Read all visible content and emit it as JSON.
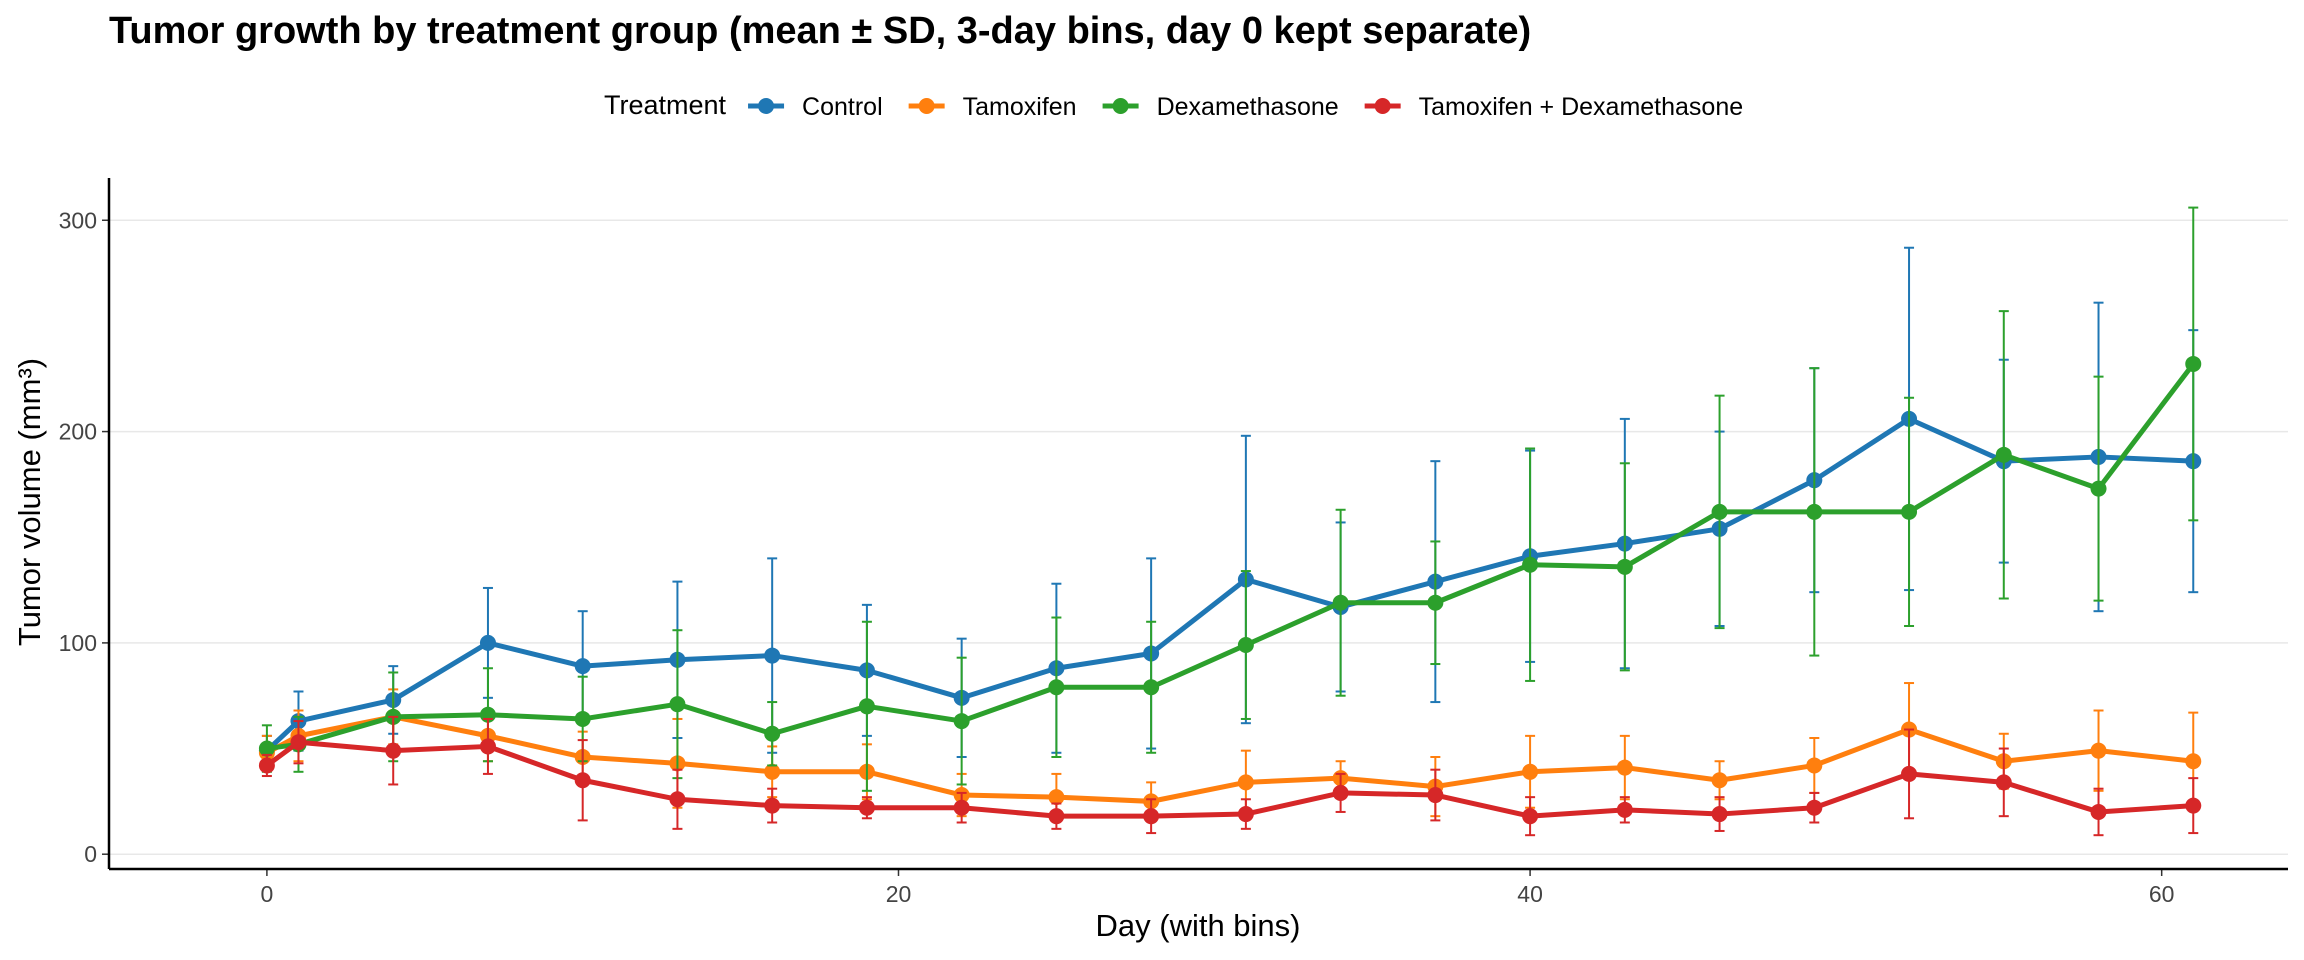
{
  "chart_data": {
    "type": "line",
    "title": "Tumor growth by treatment group (mean ± SD, 3-day bins, day 0 kept separate)",
    "xlabel": "Day (with bins)",
    "ylabel": "Tumor volume (mm³)",
    "xlim": [
      -5,
      64
    ],
    "ylim": [
      -7,
      320
    ],
    "xticks": [
      0,
      20,
      40,
      60
    ],
    "yticks": [
      0,
      100,
      200,
      300
    ],
    "grid": "horizontal",
    "legend": {
      "title": "Treatment",
      "position": "top"
    },
    "x": [
      0,
      1,
      4,
      7,
      10,
      13,
      16,
      19,
      22,
      25,
      28,
      31,
      34,
      37,
      40,
      43,
      46,
      49,
      52,
      55,
      58,
      61
    ],
    "series": [
      {
        "name": "Control",
        "color": "#1f77b4",
        "values": [
          49,
          63,
          73,
          100,
          89,
          92,
          94,
          87,
          74,
          88,
          95,
          130,
          117,
          129,
          141,
          147,
          154,
          177,
          206,
          186,
          188,
          186
        ],
        "err": [
          7,
          14,
          16,
          26,
          26,
          37,
          46,
          31,
          28,
          40,
          45,
          68,
          40,
          57,
          50,
          59,
          46,
          53,
          81,
          48,
          73,
          62
        ]
      },
      {
        "name": "Tamoxifen",
        "color": "#ff7f0e",
        "values": [
          48,
          56,
          65,
          56,
          46,
          43,
          39,
          39,
          28,
          27,
          25,
          34,
          36,
          32,
          39,
          41,
          35,
          42,
          59,
          44,
          49,
          44
        ],
        "err": [
          8,
          12,
          13,
          12,
          12,
          21,
          12,
          13,
          10,
          11,
          9,
          15,
          8,
          14,
          17,
          15,
          9,
          13,
          22,
          13,
          19,
          23
        ]
      },
      {
        "name": "Dexamethasone",
        "color": "#2ca02c",
        "values": [
          50,
          52,
          65,
          66,
          64,
          71,
          57,
          70,
          63,
          79,
          79,
          99,
          119,
          119,
          137,
          136,
          162,
          162,
          162,
          189,
          173,
          232
        ],
        "err": [
          11,
          13,
          21,
          22,
          20,
          35,
          15,
          40,
          30,
          33,
          31,
          35,
          44,
          29,
          55,
          49,
          55,
          68,
          54,
          68,
          53,
          74
        ]
      },
      {
        "name": "Tamoxifen + Dexamethasone",
        "color": "#d62728",
        "values": [
          42,
          53,
          49,
          51,
          35,
          26,
          23,
          22,
          22,
          18,
          18,
          19,
          29,
          28,
          18,
          21,
          19,
          22,
          38,
          34,
          20,
          23
        ],
        "err": [
          5,
          10,
          16,
          13,
          19,
          14,
          8,
          5,
          7,
          6,
          8,
          7,
          9,
          12,
          9,
          6,
          8,
          7,
          21,
          16,
          11,
          13
        ]
      }
    ]
  }
}
